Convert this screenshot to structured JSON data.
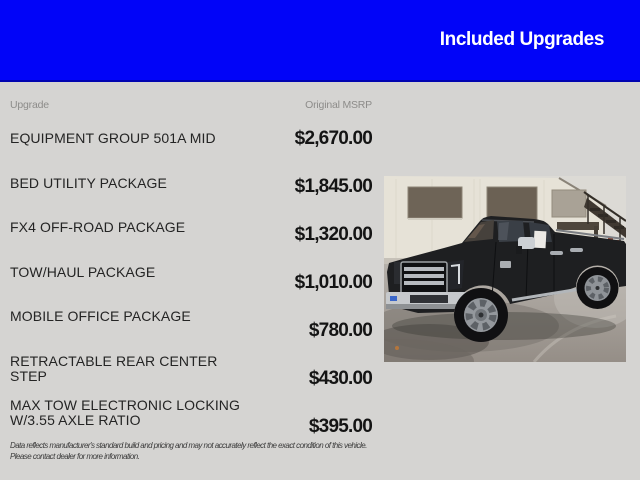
{
  "banner": {
    "title": "Included Upgrades"
  },
  "table": {
    "col_upgrade": "Upgrade",
    "col_msrp": "Original MSRP",
    "rows": [
      {
        "label": "EQUIPMENT GROUP 501A MID",
        "price": "$2,670.00"
      },
      {
        "label": "BED UTILITY PACKAGE",
        "price": "$1,845.00"
      },
      {
        "label": "FX4 OFF-ROAD PACKAGE",
        "price": "$1,320.00"
      },
      {
        "label": "TOW/HAUL PACKAGE",
        "price": "$1,010.00"
      },
      {
        "label": "MOBILE OFFICE PACKAGE",
        "price": "$780.00"
      },
      {
        "label": "RETRACTABLE REAR CENTER STEP",
        "price": "$430.00"
      },
      {
        "label": "MAX TOW ELECTRONIC LOCKING W/3.55 AXLE RATIO",
        "price": "$395.00"
      }
    ]
  },
  "disclaimer": {
    "line1": "Data reflects manufacturer's standard build and pricing and may not accurately reflect the exact condition of this vehicle.",
    "line2": "Please contact dealer for more information."
  },
  "photo": {
    "alt": "Black Ford F-150 crew cab pickup parked on wet pavement in front of a beige building with an exterior metal staircase"
  },
  "colors": {
    "banner_blue": "#0104f8",
    "page_bg": "#d5d4d2",
    "header_text": "#8d8c8a",
    "label_text": "#242424",
    "price_text": "#141414",
    "banner_text": "#ffffff"
  }
}
